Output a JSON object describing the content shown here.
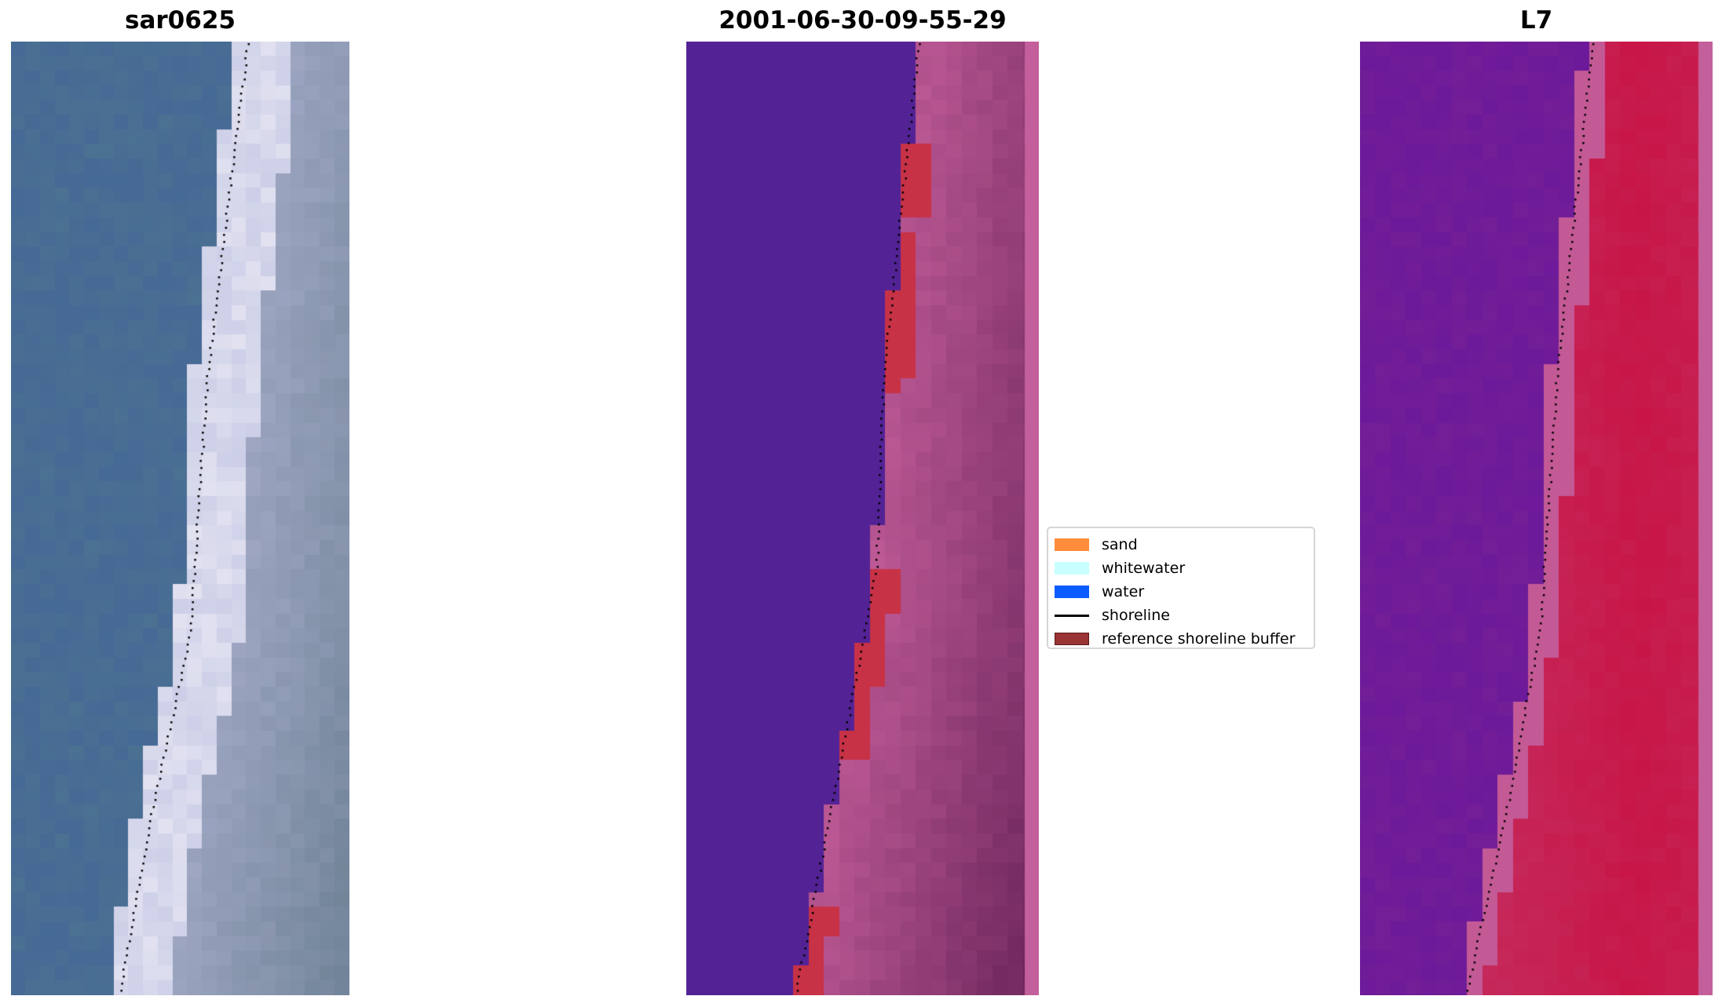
{
  "panels": [
    {
      "title": "sar0625",
      "kind": "rgb"
    },
    {
      "title": "2001-06-30-09-55-29",
      "kind": "classified"
    },
    {
      "title": "L7",
      "kind": "index"
    }
  ],
  "legend": {
    "items": [
      {
        "label": "sand",
        "color": "#ff8c3a"
      },
      {
        "label": "whitewater",
        "color": "#c8ffff"
      },
      {
        "label": "water",
        "color": "#0a5cff"
      },
      {
        "label": "shoreline",
        "color": "#000000"
      },
      {
        "label": "reference shoreline buffer",
        "color": "#9a3333"
      }
    ]
  }
}
